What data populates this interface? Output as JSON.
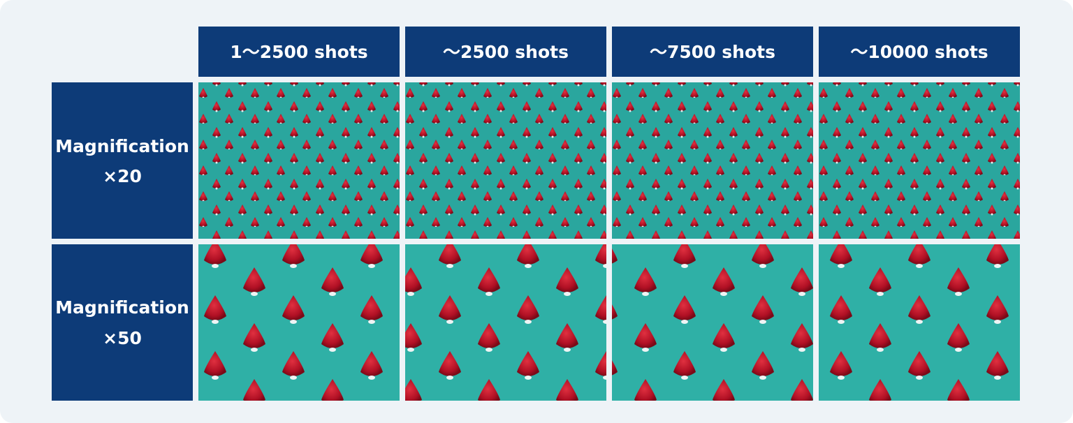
{
  "table": {
    "columns": [
      "1〜2500 shots",
      "〜2500 shots",
      "〜7500 shots",
      "〜10000 shots"
    ],
    "rows": [
      {
        "label": "Magnification",
        "scale": "×20"
      },
      {
        "label": "Magnification",
        "scale": "×50"
      }
    ]
  }
}
